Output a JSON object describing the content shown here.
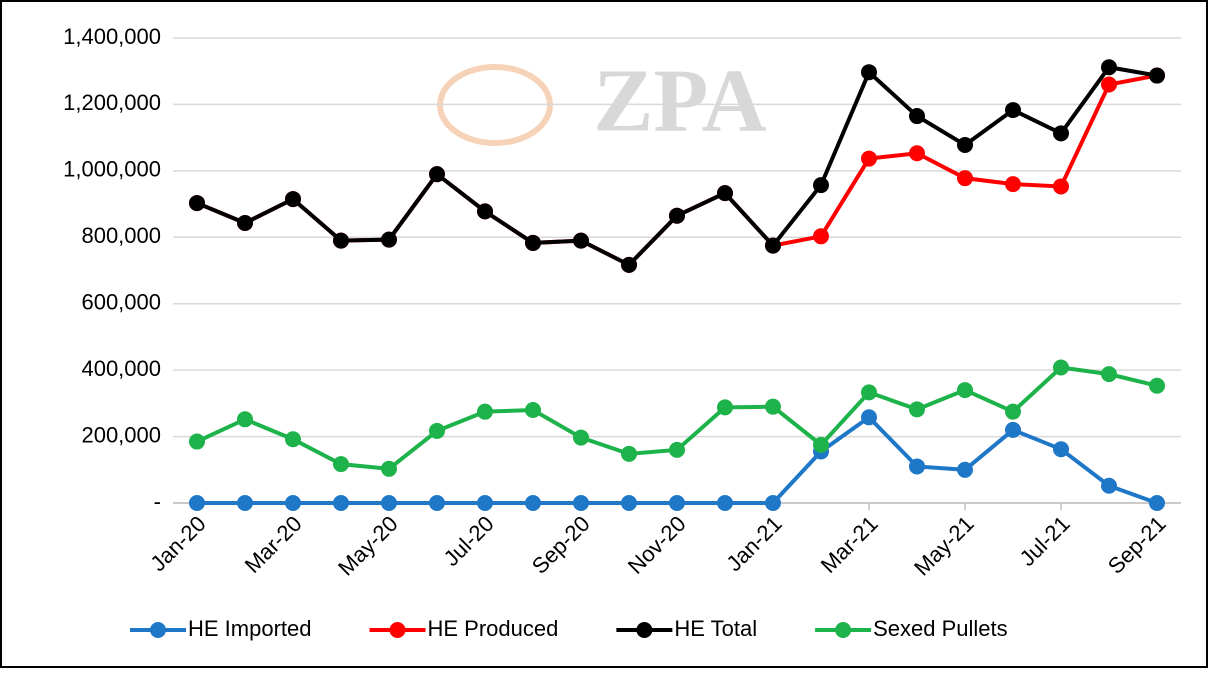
{
  "chart_data": {
    "type": "line",
    "watermark": "ZPA",
    "categories": [
      "Jan-20",
      null,
      "Mar-20",
      null,
      "May-20",
      null,
      "Jul-20",
      null,
      "Sep-20",
      null,
      "Nov-20",
      null,
      "Jan-21",
      null,
      "Mar-21",
      null,
      "May-21",
      null,
      "Jul-21",
      null,
      "Sep-21"
    ],
    "series": [
      {
        "name": "HE Imported",
        "color": "#1f77c8",
        "values": [
          0,
          0,
          0,
          0,
          0,
          0,
          0,
          0,
          0,
          0,
          0,
          0,
          0,
          155000,
          258000,
          110000,
          100000,
          220000,
          162000,
          52000,
          0
        ]
      },
      {
        "name": "HE Produced",
        "color": "#ff0000",
        "values": [
          903000,
          843000,
          915000,
          790000,
          793000,
          990000,
          878000,
          783000,
          790000,
          717000,
          865000,
          933000,
          775000,
          803000,
          1037000,
          1053000,
          978000,
          960000,
          953000,
          1260000,
          1287000
        ]
      },
      {
        "name": "HE Total",
        "color": "#000000",
        "values": [
          903000,
          843000,
          915000,
          790000,
          793000,
          990000,
          878000,
          783000,
          790000,
          717000,
          865000,
          933000,
          775000,
          957000,
          1297000,
          1165000,
          1078000,
          1183000,
          1113000,
          1312000,
          1287000
        ]
      },
      {
        "name": "Sexed Pullets",
        "color": "#1db34a",
        "values": [
          185000,
          252000,
          192000,
          117000,
          103000,
          217000,
          275000,
          280000,
          197000,
          148000,
          160000,
          288000,
          290000,
          175000,
          333000,
          282000,
          340000,
          275000,
          408000,
          388000,
          353000
        ]
      }
    ],
    "ylim": [
      0,
      1400000
    ],
    "yticks": [
      {
        "value": 0,
        "label": "-"
      },
      {
        "value": 200000,
        "label": "200,000"
      },
      {
        "value": 400000,
        "label": "400,000"
      },
      {
        "value": 600000,
        "label": "600,000"
      },
      {
        "value": 800000,
        "label": "800,000"
      },
      {
        "value": 1000000,
        "label": "1,000,000"
      },
      {
        "value": 1200000,
        "label": "1,200,000"
      },
      {
        "value": 1400000,
        "label": "1,400,000"
      }
    ],
    "grid": true,
    "legend": "bottom"
  }
}
